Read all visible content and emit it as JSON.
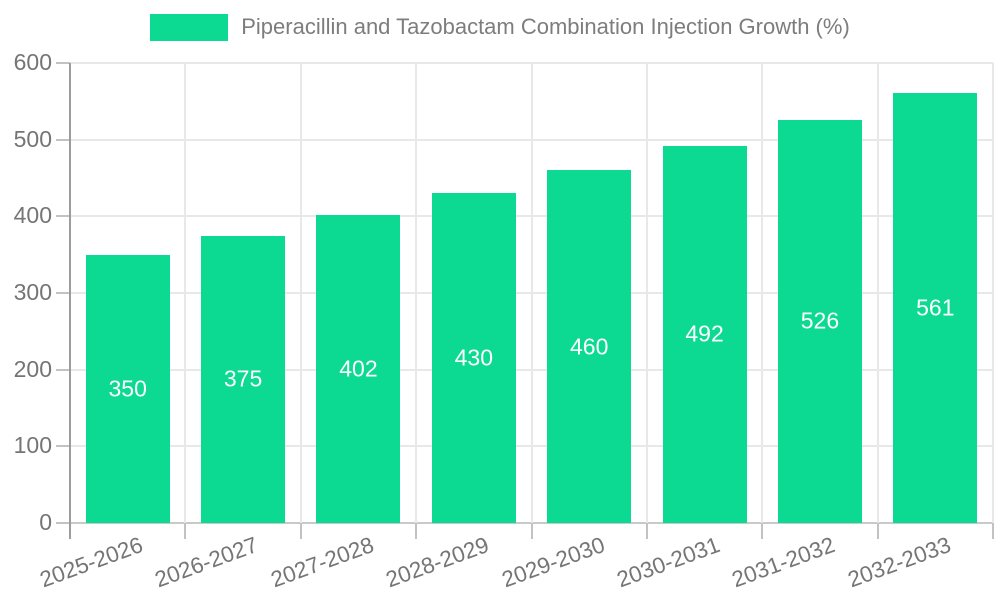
{
  "chart_data": {
    "type": "bar",
    "title": "Piperacillin and Tazobactam Combination Injection Growth (%)",
    "legend_position": "top",
    "categories": [
      "2025-2026",
      "2026-2027",
      "2027-2028",
      "2028-2029",
      "2029-2030",
      "2030-2031",
      "2031-2032",
      "2032-2033"
    ],
    "values": [
      350,
      375,
      402,
      430,
      460,
      492,
      526,
      561
    ],
    "xlabel": "",
    "ylabel": "",
    "ylim": [
      0,
      600
    ],
    "ytick_step": 100,
    "ytick_labels": [
      "0",
      "100",
      "200",
      "300",
      "400",
      "500",
      "600"
    ],
    "grid": true,
    "value_labels_inside_bars": true,
    "colors": {
      "bar": "#0dda92",
      "value_text": "#ffffff",
      "axis_text": "#757575",
      "legend_text": "#7d7d7d",
      "gridline": "#e8e8e8",
      "baseline": "#c9c9c9",
      "axis_line": "#9c9c9c",
      "tick": "#c2c2c2"
    }
  }
}
